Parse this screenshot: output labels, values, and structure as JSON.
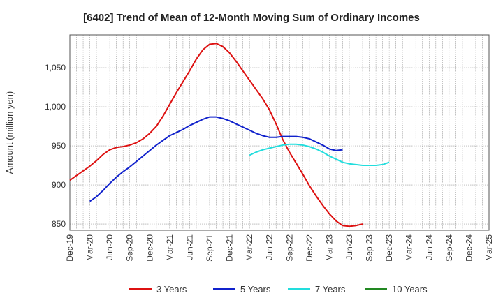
{
  "chart_data": {
    "type": "line",
    "title": "[6402]  Trend of Mean of 12-Month Moving Sum of Ordinary Incomes",
    "xlabel": "",
    "ylabel": "Amount (million yen)",
    "ylim": [
      842,
      1092
    ],
    "yticks": [
      850,
      900,
      950,
      1000,
      1050
    ],
    "ytick_labels": [
      "850",
      "900",
      "950",
      "1,000",
      "1,050"
    ],
    "x_tick_labels": [
      "Dec-19",
      "Mar-20",
      "Jun-20",
      "Sep-20",
      "Dec-20",
      "Mar-21",
      "Jun-21",
      "Sep-21",
      "Dec-21",
      "Mar-22",
      "Jun-22",
      "Sep-22",
      "Dec-22",
      "Mar-23",
      "Jun-23",
      "Sep-23",
      "Dec-23",
      "Mar-24",
      "Jun-24",
      "Sep-24",
      "Dec-24",
      "Mar-25"
    ],
    "x_start": "Dec-19",
    "n_months": 63,
    "grid": true,
    "legend_position": "bottom",
    "series": [
      {
        "name": "3 Years",
        "color": "#dd1111",
        "start_index": 0,
        "values": [
          906,
          912,
          918,
          924,
          931,
          939,
          945,
          948,
          949,
          951,
          954,
          959,
          966,
          975,
          988,
          1003,
          1018,
          1032,
          1046,
          1061,
          1073,
          1080,
          1081,
          1077,
          1069,
          1058,
          1046,
          1034,
          1022,
          1010,
          996,
          978,
          958,
          942,
          928,
          914,
          899,
          886,
          874,
          863,
          854,
          848,
          847,
          848,
          850
        ]
      },
      {
        "name": "5 Years",
        "color": "#1122cc",
        "start_index": 3,
        "values": [
          879,
          885,
          893,
          902,
          910,
          917,
          923,
          930,
          937,
          944,
          951,
          957,
          963,
          967,
          971,
          976,
          980,
          984,
          987,
          987,
          985,
          982,
          978,
          974,
          970,
          966,
          963,
          961,
          961,
          962,
          962,
          962,
          961,
          959,
          955,
          951,
          946,
          944,
          945
        ]
      },
      {
        "name": "7 Years",
        "color": "#22dddd",
        "start_index": 27,
        "values": [
          938,
          942,
          945,
          947,
          949,
          951,
          952,
          952,
          951,
          949,
          946,
          942,
          937,
          933,
          929,
          927,
          926,
          925,
          925,
          925,
          926,
          929
        ]
      },
      {
        "name": "10 Years",
        "color": "#228822",
        "start_index": 0,
        "values": []
      }
    ]
  }
}
